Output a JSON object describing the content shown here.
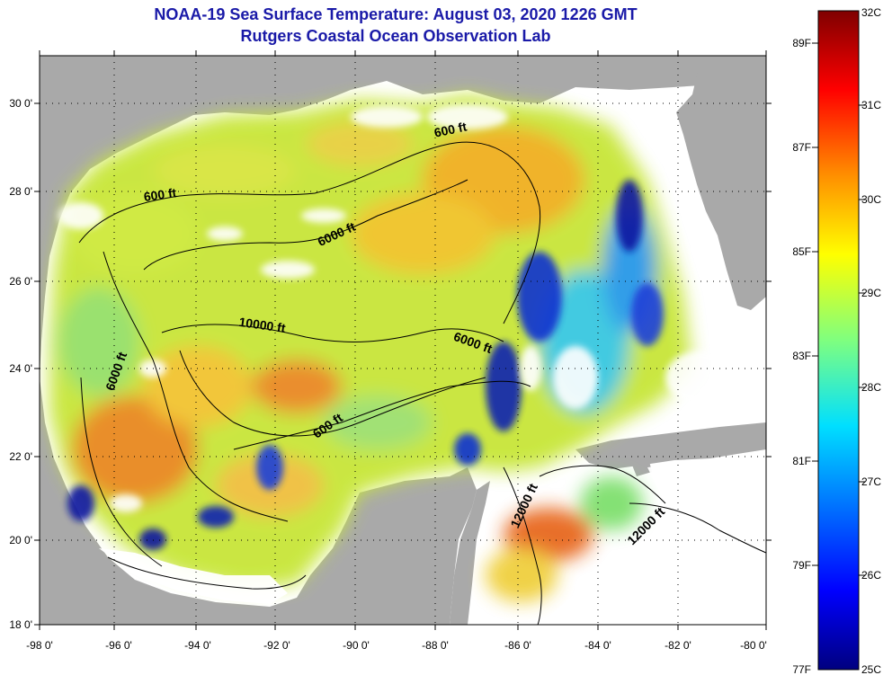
{
  "title": {
    "line1": "NOAA-19 Sea Surface Temperature:  August 03, 2020 1226 GMT",
    "line2": "Rutgers Coastal Ocean Observation Lab"
  },
  "axes": {
    "lat_labels": [
      "30 0'",
      "28 0'",
      "26 0'",
      "24 0'",
      "22 0'",
      "20 0'",
      "18 0'"
    ],
    "lon_labels": [
      "-98 0'",
      "-96 0'",
      "-94 0'",
      "-92 0'",
      "-90 0'",
      "-88 0'",
      "-86 0'",
      "-84 0'",
      "-82 0'",
      "-80 0'"
    ]
  },
  "contour_labels": [
    {
      "text": "600 ft",
      "lon": -87.8,
      "lat": 29.3,
      "angle": -12
    },
    {
      "text": "600 ft",
      "lon": -95.0,
      "lat": 27.8,
      "angle": -8
    },
    {
      "text": "6000 ft",
      "lon": -90.6,
      "lat": 26.9,
      "angle": -25
    },
    {
      "text": "10000 ft",
      "lon": -92.5,
      "lat": 24.8,
      "angle": 8
    },
    {
      "text": "6000 ft",
      "lon": -87.3,
      "lat": 24.4,
      "angle": 20
    },
    {
      "text": "6000 ft",
      "lon": -96.0,
      "lat": 23.8,
      "angle": -70
    },
    {
      "text": "600 ft",
      "lon": -90.8,
      "lat": 22.5,
      "angle": -35
    },
    {
      "text": "12000 ft",
      "lon": -85.9,
      "lat": 20.7,
      "angle": -65
    },
    {
      "text": "12000 ft",
      "lon": -82.9,
      "lat": 20.2,
      "angle": -45
    }
  ],
  "colorbar": {
    "celsius": [
      "32C",
      "31C",
      "30C",
      "29C",
      "28C",
      "27C",
      "26C",
      "25C"
    ],
    "fahrenheit": [
      "89F",
      "87F",
      "85F",
      "83F",
      "81F",
      "79F",
      "77F"
    ]
  },
  "colors": {
    "land": "#a9a9a9",
    "title": "#1a1aa8"
  }
}
